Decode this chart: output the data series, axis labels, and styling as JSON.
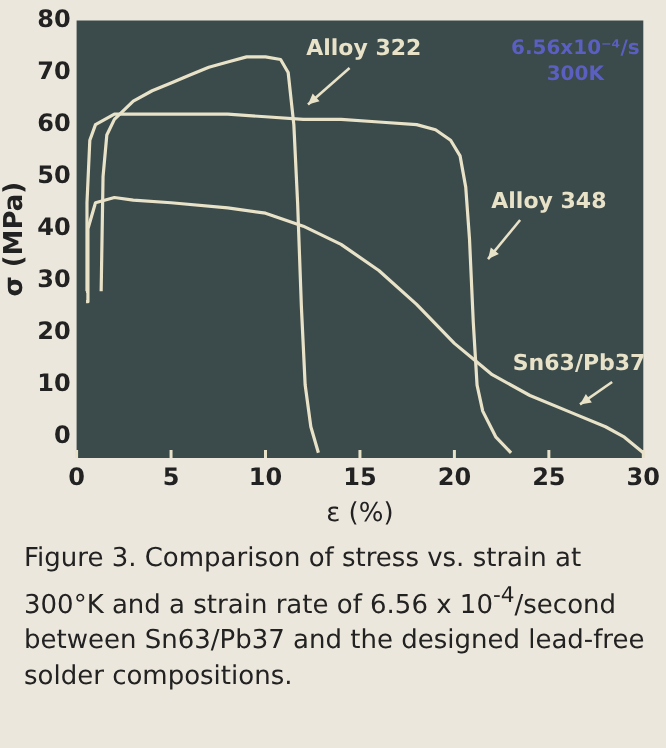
{
  "chart_data": {
    "type": "line",
    "xlabel": "ε (%)",
    "ylabel": "σ (MPa)",
    "xlim": [
      0,
      30
    ],
    "ylim": [
      -4,
      80
    ],
    "xticks": [
      0,
      5,
      10,
      15,
      20,
      25,
      30
    ],
    "yticks": [
      0,
      10,
      20,
      30,
      40,
      50,
      60,
      70,
      80
    ],
    "grid": false,
    "legend": false,
    "marker": "none",
    "line_style": "solid",
    "annotations": [
      "6.56x10⁻⁴/s\n300K",
      "Figure 3. Comparison of stress vs. strain at 300°K and a strain rate of 6.56 x 10$^{-4}$/second between Sn63/Pb37 and the designed lead-free solder compositions."
    ],
    "series": [
      {
        "name": "Alloy 322",
        "color": "#e8e2c8",
        "x": [
          1.3,
          1.4,
          1.6,
          2,
          3,
          4,
          5,
          6,
          7,
          8,
          9,
          10,
          10.8,
          11.2,
          11.5,
          11.7,
          11.9,
          12.1,
          12.4,
          12.8
        ],
        "values": [
          28,
          50,
          58,
          61,
          64.5,
          66.5,
          68,
          69.5,
          71,
          72,
          73,
          73,
          72.5,
          70,
          60,
          45,
          25,
          10,
          2,
          -3
        ]
      },
      {
        "name": "Alloy 348",
        "color": "#e8e2c8",
        "x": [
          0.5,
          0.55,
          0.7,
          1,
          2,
          4,
          6,
          8,
          10,
          12,
          14,
          16,
          18,
          19,
          19.8,
          20.3,
          20.6,
          20.8,
          21,
          21.2,
          21.5,
          22.2,
          23
        ],
        "values": [
          28,
          45,
          57,
          60,
          62,
          62,
          62,
          62,
          61.5,
          61,
          61,
          60.5,
          60,
          59,
          57,
          54,
          48,
          38,
          22,
          10,
          5,
          0,
          -3
        ]
      },
      {
        "name": "Sn63/Pb37",
        "color": "#e8e2c8",
        "x": [
          0.5,
          0.6,
          1,
          2,
          3,
          5,
          8,
          10,
          12,
          14,
          16,
          18,
          20,
          21,
          22,
          24,
          26,
          28,
          29,
          30
        ],
        "values": [
          26,
          40,
          45,
          46,
          45.5,
          45,
          44,
          43,
          40.5,
          37,
          32,
          25.5,
          18,
          15,
          12,
          8,
          5,
          2,
          0,
          -3
        ]
      }
    ]
  }
}
